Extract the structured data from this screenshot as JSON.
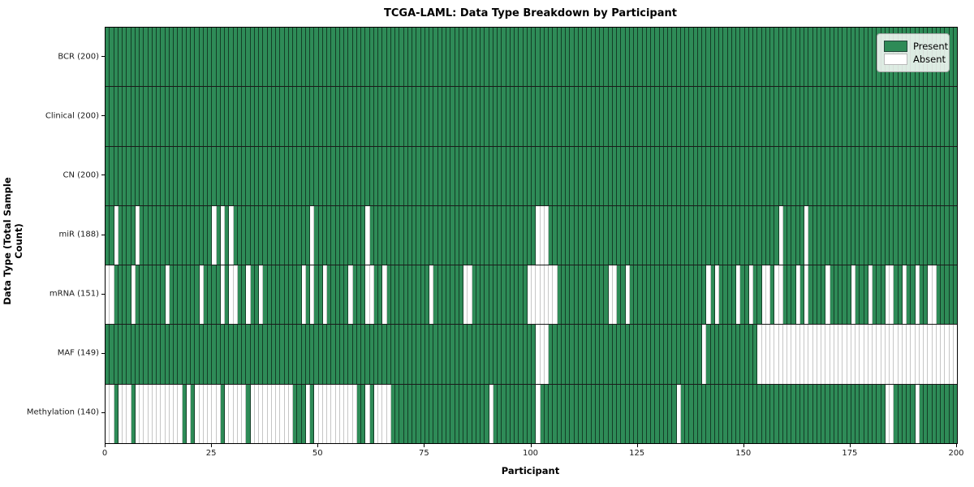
{
  "title": "TCGA-LAML: Data Type Breakdown by Participant",
  "xlabel": "Participant",
  "ylabel": "Data Type (Total Sample Count)",
  "legend": {
    "present_label": "Present",
    "absent_label": "Absent"
  },
  "colors": {
    "present": "#2e8b57",
    "absent": "#ffffff",
    "row_divider": "#1a1a1a",
    "cell_edge_present": "rgba(0,0,0,0.55)",
    "cell_edge_absent": "#c6c6c6"
  },
  "chart_data": {
    "type": "heatmap",
    "x_axis": {
      "label": "Participant",
      "range": [
        0,
        200
      ],
      "ticks": [
        0,
        25,
        50,
        75,
        100,
        125,
        150,
        175,
        200
      ]
    },
    "y_axis": {
      "label": "Data Type (Total Sample Count)"
    },
    "n_participants": 200,
    "encoding": "present=green, absent=white",
    "legend_position": "upper right",
    "rows": [
      {
        "label": "BCR (200)",
        "data_type": "BCR",
        "present_count": 200,
        "absent_participants": []
      },
      {
        "label": "Clinical (200)",
        "data_type": "Clinical",
        "present_count": 200,
        "absent_participants": []
      },
      {
        "label": "CN (200)",
        "data_type": "CN",
        "present_count": 200,
        "absent_participants": []
      },
      {
        "label": "miR (188)",
        "data_type": "miR",
        "present_count": 188,
        "absent_participants": [
          2,
          7,
          25,
          27,
          29,
          48,
          61,
          101,
          102,
          103,
          158,
          164
        ]
      },
      {
        "label": "mRNA (151)",
        "data_type": "mRNA",
        "present_count": 151,
        "absent_participants": [
          0,
          1,
          6,
          14,
          22,
          27,
          29,
          30,
          33,
          36,
          46,
          48,
          51,
          57,
          61,
          62,
          65,
          76,
          84,
          85,
          99,
          100,
          101,
          102,
          103,
          104,
          105,
          118,
          119,
          122,
          141,
          143,
          148,
          151,
          154,
          155,
          157,
          158,
          162,
          164,
          169,
          175,
          179,
          183,
          184,
          187,
          190,
          193,
          194
        ]
      },
      {
        "label": "MAF (149)",
        "data_type": "MAF",
        "present_count": 149,
        "absent_participants": [
          101,
          102,
          103,
          140,
          153,
          154,
          155,
          156,
          157,
          158,
          159,
          160,
          161,
          162,
          163,
          164,
          165,
          166,
          167,
          168,
          169,
          170,
          171,
          172,
          173,
          174,
          175,
          176,
          177,
          178,
          179,
          180,
          181,
          182,
          183,
          184,
          185,
          186,
          187,
          188,
          189,
          190,
          191,
          192,
          193,
          194,
          195,
          196,
          197,
          198,
          199
        ]
      },
      {
        "label": "Methylation (140)",
        "data_type": "Methylation",
        "present_count": 140,
        "absent_participants": [
          0,
          1,
          3,
          4,
          5,
          7,
          8,
          9,
          10,
          11,
          12,
          13,
          14,
          15,
          16,
          17,
          19,
          21,
          22,
          23,
          24,
          25,
          26,
          28,
          29,
          30,
          31,
          32,
          34,
          35,
          36,
          37,
          38,
          39,
          40,
          41,
          42,
          43,
          47,
          49,
          50,
          51,
          52,
          53,
          54,
          55,
          56,
          57,
          58,
          61,
          63,
          64,
          65,
          66,
          90,
          101,
          134,
          183,
          184,
          190
        ]
      }
    ]
  }
}
